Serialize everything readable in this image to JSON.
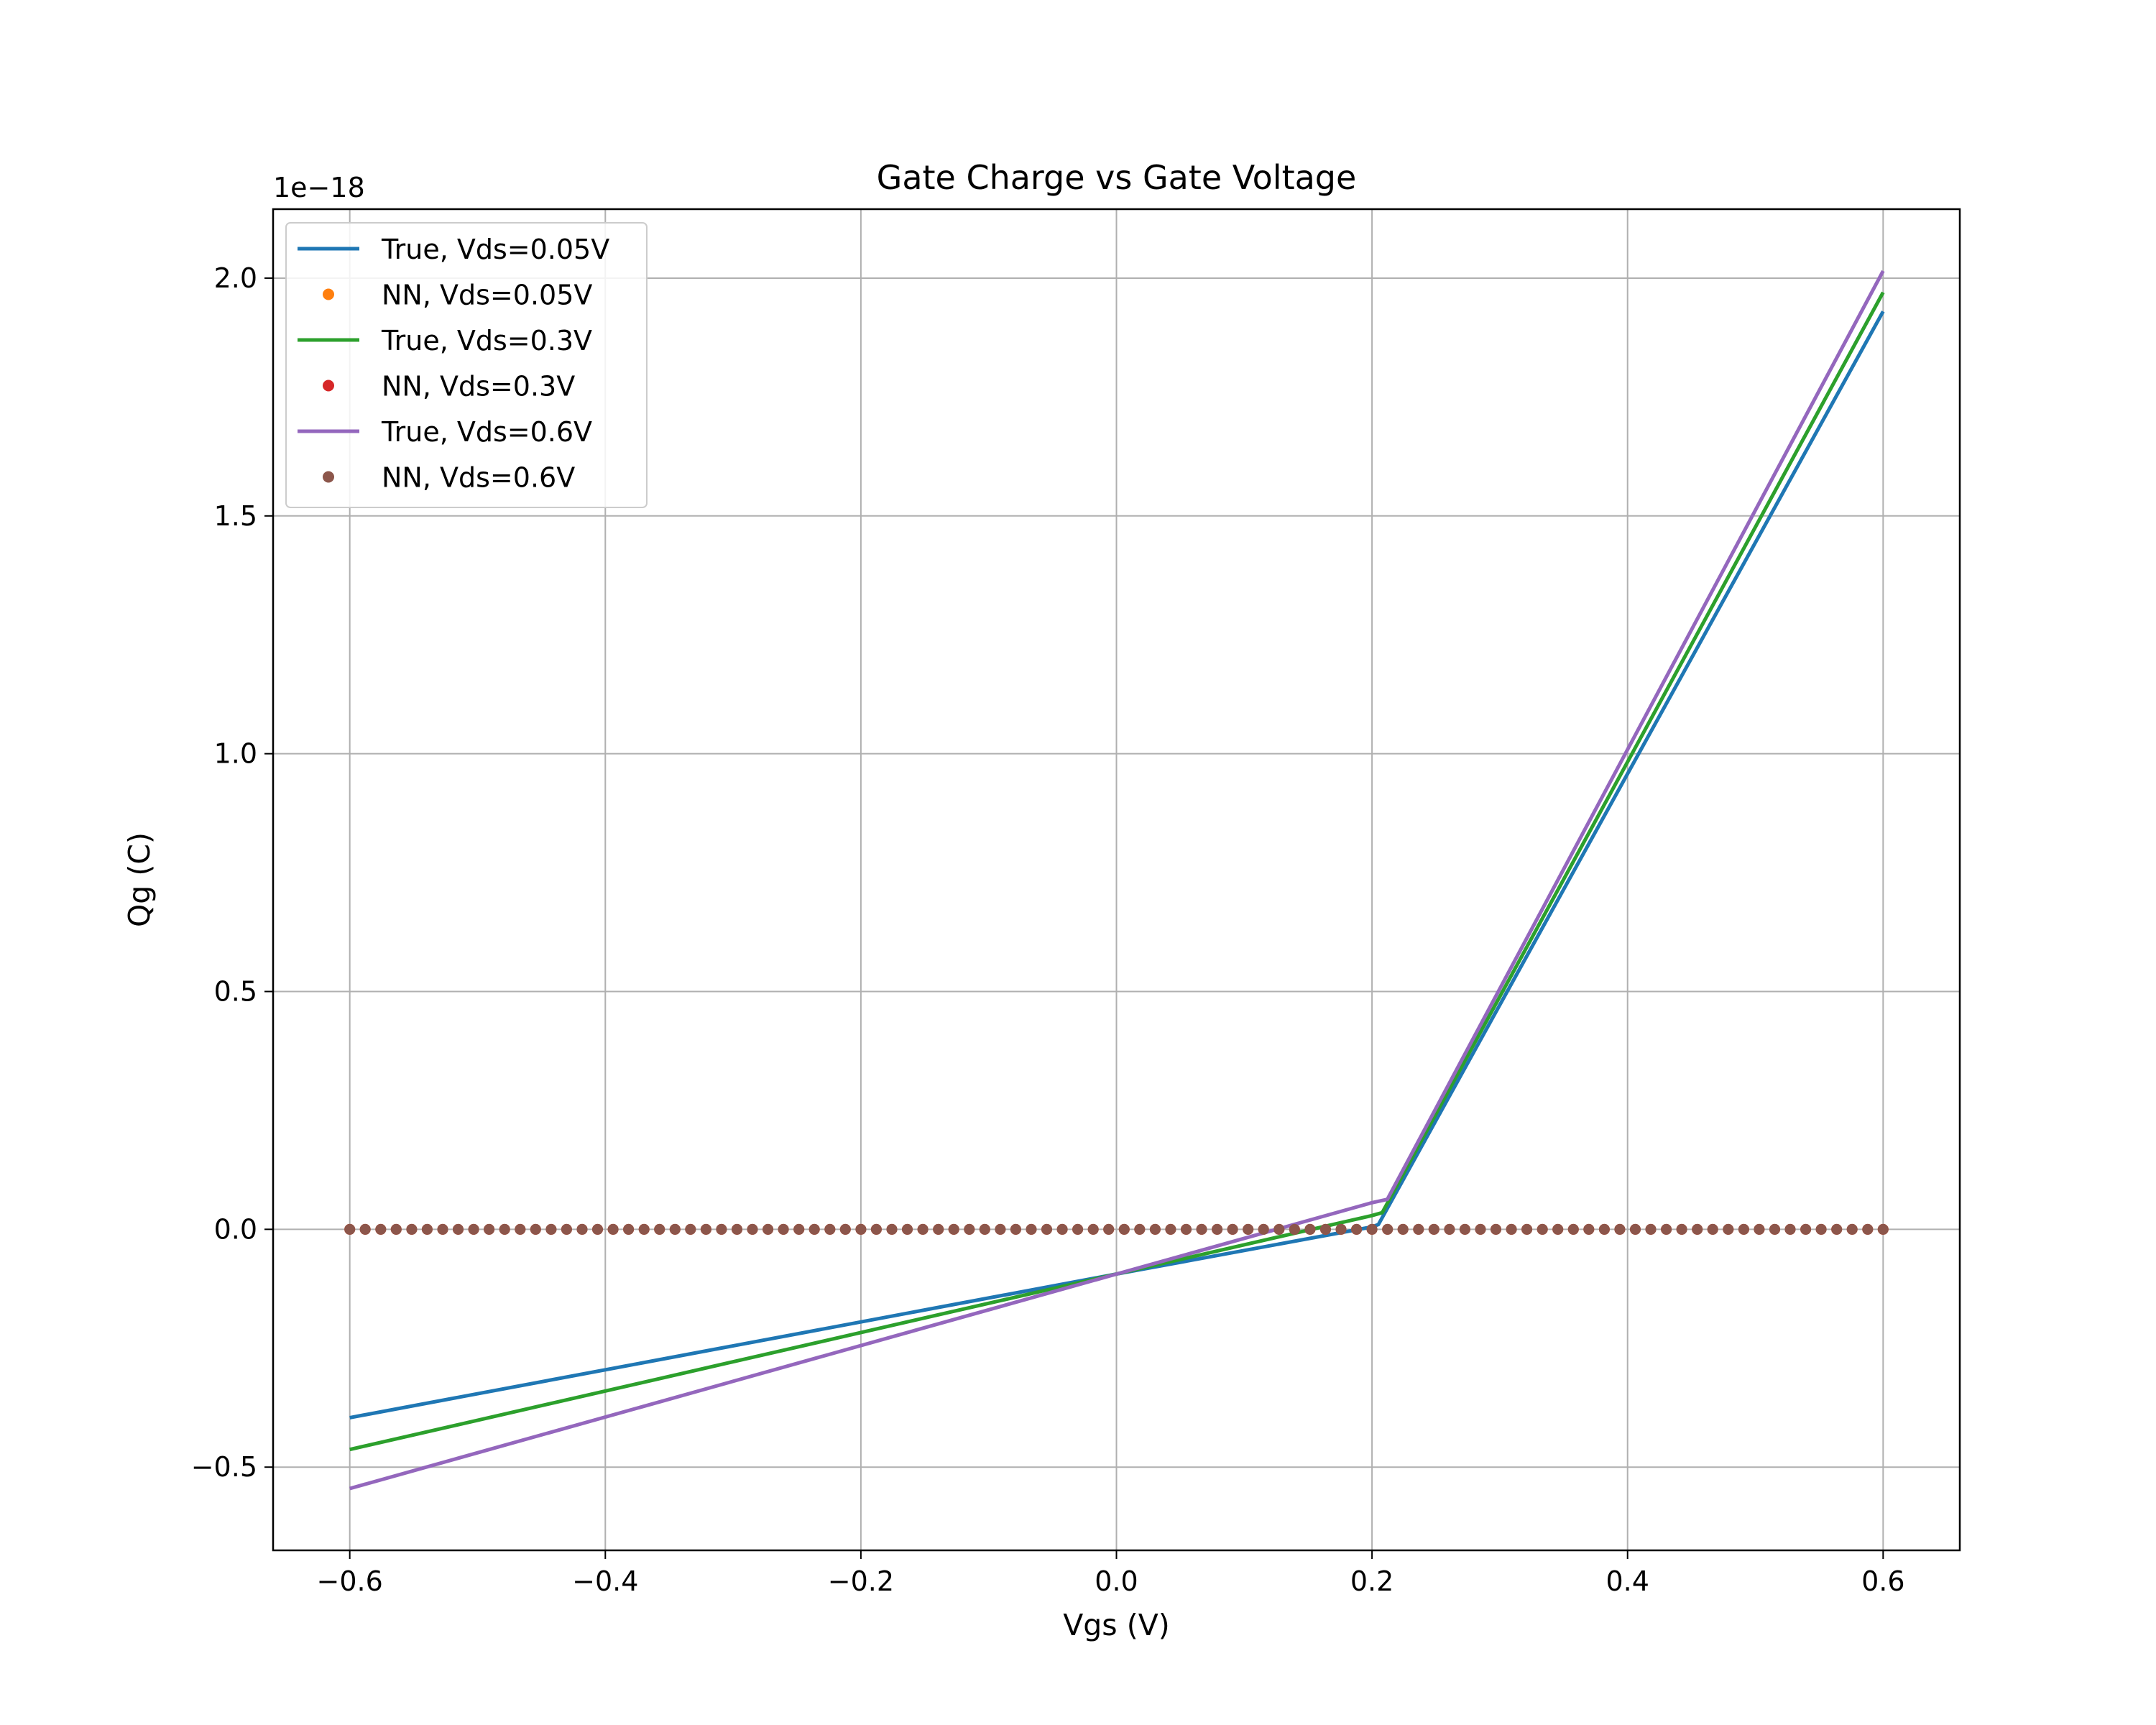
{
  "chart_data": {
    "type": "line",
    "title": "Gate Charge vs Gate Voltage",
    "xlabel": "Vgs (V)",
    "ylabel": "Qg (C)",
    "y_offset_label": "1e−18",
    "xlim": [
      -0.66,
      0.66
    ],
    "ylim": [
      -0.675,
      2.145
    ],
    "x_ticks": [
      -0.6,
      -0.4,
      -0.2,
      0.0,
      0.2,
      0.4,
      0.6
    ],
    "x_tick_labels": [
      "−0.6",
      "−0.4",
      "−0.2",
      "0.0",
      "0.2",
      "0.4",
      "0.6"
    ],
    "y_ticks": [
      -0.5,
      0.0,
      0.5,
      1.0,
      1.5,
      2.0
    ],
    "y_tick_labels": [
      "−0.5",
      "0.0",
      "0.5",
      "1.0",
      "1.5",
      "2.0"
    ],
    "grid": true,
    "legend_position": "upper-left",
    "series": [
      {
        "name": "True, Vds=0.05V",
        "kind": "line",
        "color": "#1f77b4",
        "x": [
          -0.6,
          0.0,
          0.2,
          0.205,
          0.6
        ],
        "y": [
          -0.396,
          -0.094,
          0.005,
          0.01,
          1.93
        ]
      },
      {
        "name": "NN, Vds=0.05V",
        "kind": "points",
        "color": "#ff7f0e",
        "x_range": [
          -0.6,
          0.6
        ],
        "num_points": 100,
        "y_value": 0.0
      },
      {
        "name": "True, Vds=0.3V",
        "kind": "line",
        "color": "#2ca02c",
        "x": [
          -0.6,
          0.0,
          0.2,
          0.208,
          0.6
        ],
        "y": [
          -0.463,
          -0.094,
          0.029,
          0.035,
          1.97
        ]
      },
      {
        "name": "NN, Vds=0.3V",
        "kind": "points",
        "color": "#d62728",
        "x_range": [
          -0.6,
          0.6
        ],
        "num_points": 100,
        "y_value": 0.0
      },
      {
        "name": "True, Vds=0.6V",
        "kind": "line",
        "color": "#9467bd",
        "x": [
          -0.6,
          0.0,
          0.2,
          0.212,
          0.6
        ],
        "y": [
          -0.545,
          -0.094,
          0.056,
          0.063,
          2.015
        ]
      },
      {
        "name": "NN, Vds=0.6V",
        "kind": "points",
        "color": "#8c564b",
        "x_range": [
          -0.6,
          0.6
        ],
        "num_points": 100,
        "y_value": 0.0
      }
    ]
  }
}
